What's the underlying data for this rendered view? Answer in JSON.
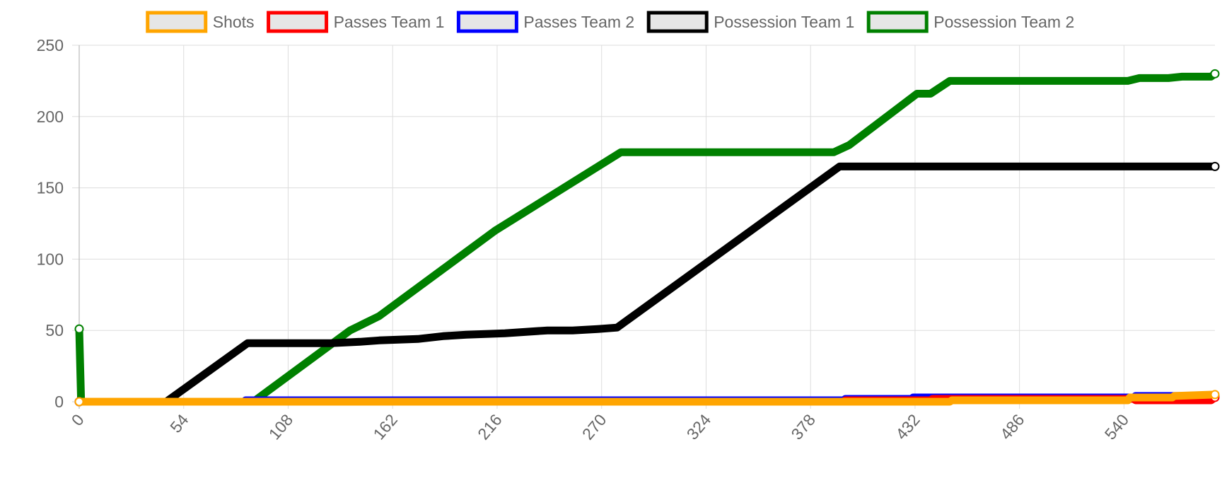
{
  "chart_data": {
    "type": "line",
    "title": "",
    "xlabel": "",
    "ylabel": "",
    "xlim": [
      0,
      587
    ],
    "ylim": [
      0,
      250
    ],
    "x_ticks": [
      0,
      54,
      108,
      162,
      216,
      270,
      324,
      378,
      432,
      486,
      540
    ],
    "y_ticks": [
      0,
      50,
      100,
      150,
      200,
      250
    ],
    "grid": true,
    "legend_position": "top",
    "series": [
      {
        "name": "Shots",
        "color": "#FFA500",
        "points": [
          [
            0,
            0
          ],
          [
            450,
            0
          ],
          [
            451,
            1
          ],
          [
            542,
            1
          ],
          [
            543,
            3
          ],
          [
            565,
            3
          ],
          [
            566,
            4
          ],
          [
            587,
            5
          ]
        ]
      },
      {
        "name": "Passes Team 1",
        "color": "#FF0000",
        "points": [
          [
            0,
            0
          ],
          [
            395,
            0
          ],
          [
            396,
            1
          ],
          [
            440,
            1
          ],
          [
            441,
            2
          ],
          [
            545,
            2
          ],
          [
            546,
            1
          ],
          [
            585,
            1
          ],
          [
            587,
            3
          ]
        ]
      },
      {
        "name": "Passes Team 2",
        "color": "#0000FF",
        "points": [
          [
            0,
            0
          ],
          [
            85,
            0
          ],
          [
            86,
            1
          ],
          [
            395,
            1
          ],
          [
            396,
            2
          ],
          [
            430,
            2
          ],
          [
            431,
            3
          ],
          [
            545,
            3
          ],
          [
            546,
            4
          ],
          [
            587,
            4
          ]
        ]
      },
      {
        "name": "Possession Team 1",
        "color": "#000000",
        "points": [
          [
            0,
            0
          ],
          [
            45,
            0
          ],
          [
            87,
            41
          ],
          [
            130,
            41
          ],
          [
            145,
            42
          ],
          [
            155,
            43
          ],
          [
            175,
            44
          ],
          [
            188,
            46
          ],
          [
            200,
            47
          ],
          [
            220,
            48
          ],
          [
            242,
            50
          ],
          [
            255,
            50
          ],
          [
            268,
            51
          ],
          [
            278,
            52
          ],
          [
            393,
            165
          ],
          [
            587,
            165
          ]
        ]
      },
      {
        "name": "Possession Team 2",
        "color": "#008000",
        "points": [
          [
            0,
            51
          ],
          [
            1,
            0
          ],
          [
            90,
            0
          ],
          [
            140,
            50
          ],
          [
            155,
            60
          ],
          [
            215,
            120
          ],
          [
            280,
            175
          ],
          [
            390,
            175
          ],
          [
            398,
            180
          ],
          [
            433,
            216
          ],
          [
            440,
            216
          ],
          [
            450,
            225
          ],
          [
            542,
            225
          ],
          [
            548,
            227
          ],
          [
            563,
            227
          ],
          [
            570,
            228
          ],
          [
            585,
            228
          ],
          [
            587,
            230
          ]
        ]
      }
    ]
  }
}
